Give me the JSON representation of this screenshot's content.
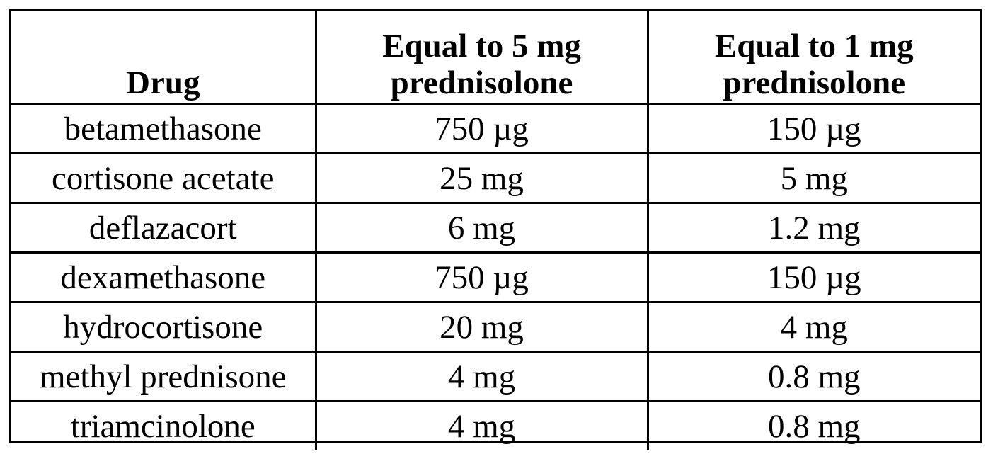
{
  "table": {
    "headers": [
      [
        "Drug"
      ],
      [
        "Equal to 5 mg",
        "prednisolone"
      ],
      [
        "Equal to 1 mg",
        "prednisolone"
      ]
    ],
    "rows": [
      [
        "betamethasone",
        "750 µg",
        "150 µg"
      ],
      [
        "cortisone acetate",
        "25 mg",
        "5 mg"
      ],
      [
        "deflazacort",
        "6 mg",
        "1.2 mg"
      ],
      [
        "dexamethasone",
        "750 µg",
        "150 µg"
      ],
      [
        "hydrocortisone",
        "20 mg",
        "4 mg"
      ],
      [
        "methyl prednisone",
        "4 mg",
        "0.8 mg"
      ],
      [
        "triamcinolone",
        "4 mg",
        "0.8 mg"
      ]
    ]
  }
}
